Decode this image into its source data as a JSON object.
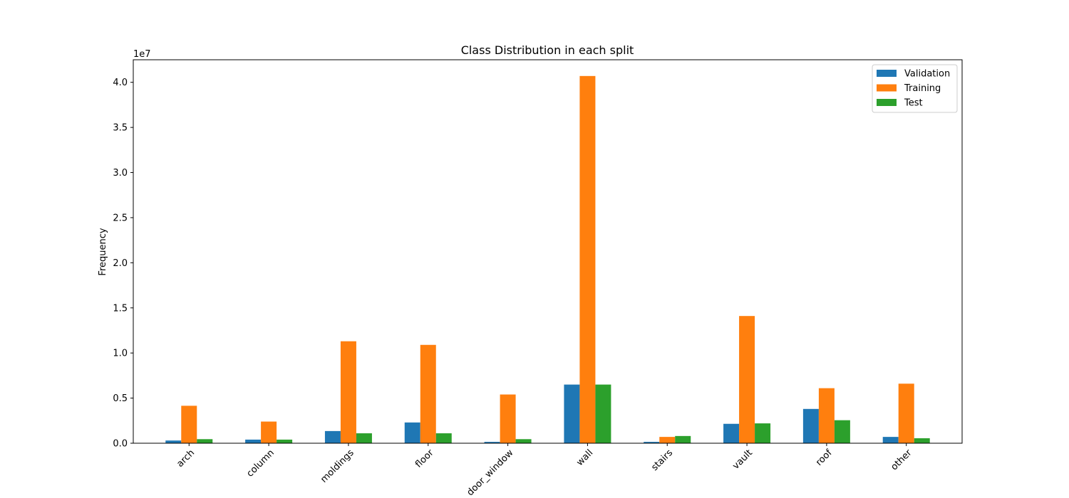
{
  "chart_data": {
    "type": "bar",
    "title": "Class Distribution in each split",
    "xlabel": "",
    "ylabel": "Frequency",
    "y_offset_label": "1e7",
    "y_scale_factor": 10000000,
    "ylim": [
      0,
      42500000
    ],
    "y_ticks": [
      0,
      5000000,
      10000000,
      15000000,
      20000000,
      25000000,
      30000000,
      35000000,
      40000000
    ],
    "y_tick_labels": [
      "0.0",
      "0.5",
      "1.0",
      "1.5",
      "2.0",
      "2.5",
      "3.0",
      "3.5",
      "4.0"
    ],
    "grid": false,
    "legend_position": "top-right",
    "categories": [
      "arch",
      "column",
      "moldings",
      "floor",
      "door_window",
      "wall",
      "stairs",
      "vault",
      "roof",
      "other"
    ],
    "series": [
      {
        "name": "Validation",
        "color": "#1f77b4",
        "values": [
          300000,
          400000,
          1350000,
          2300000,
          150000,
          6500000,
          150000,
          2150000,
          3800000,
          700000
        ]
      },
      {
        "name": "Training",
        "color": "#ff7f0e",
        "values": [
          4150000,
          2400000,
          11300000,
          10900000,
          5400000,
          40700000,
          700000,
          14100000,
          6100000,
          6600000
        ]
      },
      {
        "name": "Test",
        "color": "#2ca02c",
        "values": [
          450000,
          400000,
          1100000,
          1100000,
          450000,
          6500000,
          800000,
          2200000,
          2550000,
          550000
        ]
      }
    ]
  }
}
